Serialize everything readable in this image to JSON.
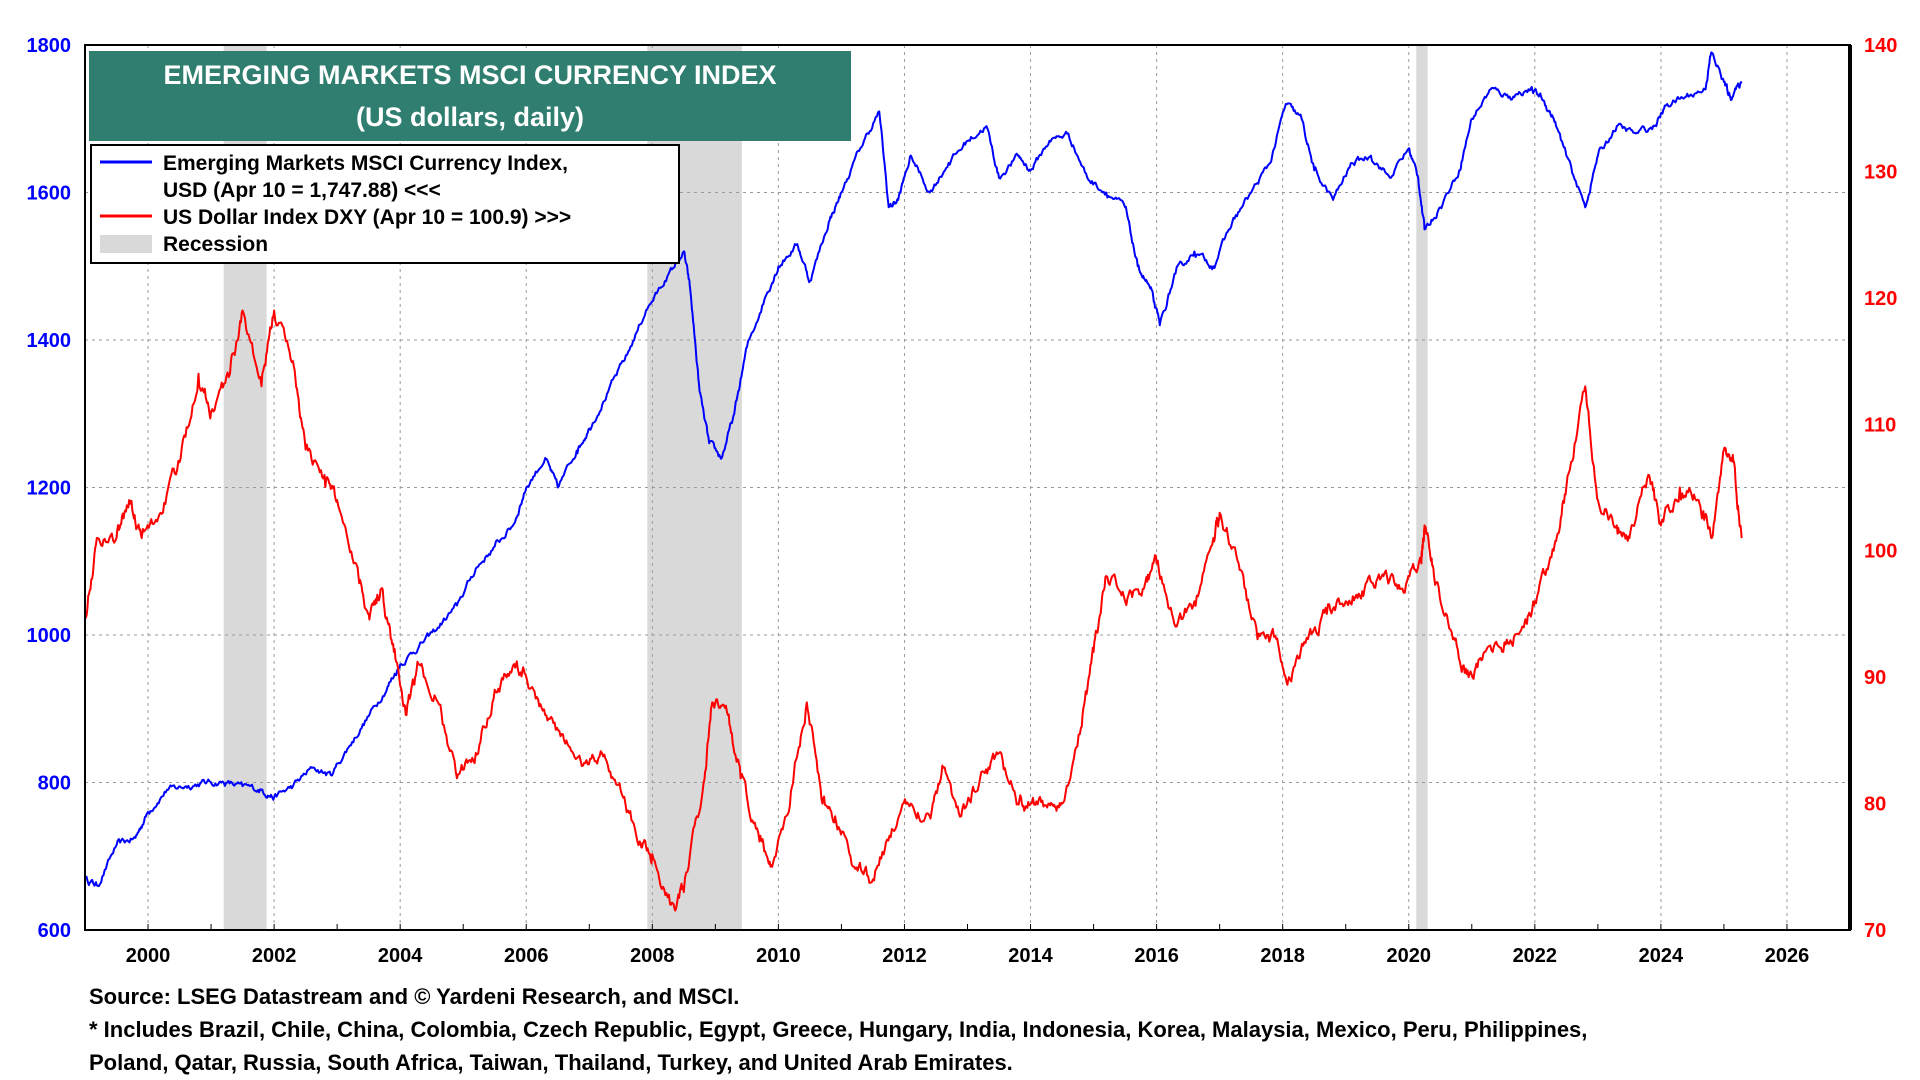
{
  "chart_data": {
    "type": "line",
    "title": "EMERGING MARKETS MSCI CURRENCY INDEX",
    "subtitle": "(US dollars, daily)",
    "x_range": [
      1999.0,
      2027.0
    ],
    "x_ticks": [
      2000,
      2002,
      2004,
      2006,
      2008,
      2010,
      2012,
      2014,
      2016,
      2018,
      2020,
      2022,
      2024,
      2026
    ],
    "left_axis": {
      "range": [
        600,
        1800
      ],
      "ticks": [
        600,
        800,
        1000,
        1200,
        1400,
        1600,
        1800
      ],
      "color": "#0000ff"
    },
    "right_axis": {
      "range": [
        70,
        140
      ],
      "ticks": [
        70,
        80,
        90,
        100,
        110,
        120,
        130,
        140
      ],
      "color": "#ff0000"
    },
    "grid": true,
    "legend_placement": "top-left",
    "legend": [
      {
        "label_line1": "Emerging Markets MSCI Currency Index,",
        "label_line2": "USD (Apr 10 = 1,747.88) <<<",
        "color": "#0000ff",
        "kind": "line"
      },
      {
        "label_line1": "US Dollar Index DXY (Apr 10 = 100.9) >>>",
        "color": "#ff0000",
        "kind": "line"
      },
      {
        "label_line1": "Recession",
        "color": "#d9d9d9",
        "kind": "box"
      }
    ],
    "recessions": [
      [
        2001.2,
        2001.88
      ],
      [
        2007.92,
        2009.42
      ],
      [
        2020.12,
        2020.3
      ]
    ],
    "series": [
      {
        "name": "Emerging Markets MSCI Currency Index, USD",
        "axis": "left",
        "color": "#0000ff",
        "points": [
          [
            1999.0,
            670
          ],
          [
            1999.2,
            660
          ],
          [
            1999.5,
            715
          ],
          [
            1999.8,
            725
          ],
          [
            2000.0,
            760
          ],
          [
            2000.3,
            790
          ],
          [
            2000.6,
            795
          ],
          [
            2000.9,
            800
          ],
          [
            2001.2,
            800
          ],
          [
            2001.5,
            795
          ],
          [
            2001.8,
            790
          ],
          [
            2002.0,
            780
          ],
          [
            2002.3,
            795
          ],
          [
            2002.6,
            820
          ],
          [
            2002.9,
            810
          ],
          [
            2003.2,
            850
          ],
          [
            2003.5,
            890
          ],
          [
            2003.8,
            930
          ],
          [
            2004.0,
            960
          ],
          [
            2004.3,
            985
          ],
          [
            2004.6,
            1010
          ],
          [
            2004.9,
            1040
          ],
          [
            2005.2,
            1090
          ],
          [
            2005.5,
            1120
          ],
          [
            2005.8,
            1150
          ],
          [
            2006.0,
            1200
          ],
          [
            2006.3,
            1240
          ],
          [
            2006.5,
            1200
          ],
          [
            2006.8,
            1250
          ],
          [
            2007.0,
            1280
          ],
          [
            2007.3,
            1330
          ],
          [
            2007.6,
            1380
          ],
          [
            2007.9,
            1440
          ],
          [
            2008.2,
            1480
          ],
          [
            2008.5,
            1520
          ],
          [
            2008.6,
            1470
          ],
          [
            2008.75,
            1330
          ],
          [
            2008.9,
            1260
          ],
          [
            2009.1,
            1240
          ],
          [
            2009.3,
            1300
          ],
          [
            2009.5,
            1390
          ],
          [
            2009.8,
            1460
          ],
          [
            2010.0,
            1500
          ],
          [
            2010.3,
            1530
          ],
          [
            2010.5,
            1480
          ],
          [
            2010.8,
            1560
          ],
          [
            2011.0,
            1600
          ],
          [
            2011.3,
            1660
          ],
          [
            2011.6,
            1710
          ],
          [
            2011.75,
            1580
          ],
          [
            2011.9,
            1590
          ],
          [
            2012.1,
            1650
          ],
          [
            2012.4,
            1600
          ],
          [
            2012.7,
            1640
          ],
          [
            2013.0,
            1670
          ],
          [
            2013.3,
            1690
          ],
          [
            2013.5,
            1620
          ],
          [
            2013.8,
            1650
          ],
          [
            2014.0,
            1630
          ],
          [
            2014.3,
            1670
          ],
          [
            2014.6,
            1680
          ],
          [
            2014.9,
            1620
          ],
          [
            2015.2,
            1600
          ],
          [
            2015.5,
            1580
          ],
          [
            2015.7,
            1500
          ],
          [
            2015.9,
            1470
          ],
          [
            2016.05,
            1420
          ],
          [
            2016.3,
            1490
          ],
          [
            2016.6,
            1520
          ],
          [
            2016.9,
            1500
          ],
          [
            2017.2,
            1560
          ],
          [
            2017.5,
            1600
          ],
          [
            2017.8,
            1640
          ],
          [
            2018.05,
            1720
          ],
          [
            2018.3,
            1700
          ],
          [
            2018.5,
            1630
          ],
          [
            2018.8,
            1590
          ],
          [
            2019.1,
            1640
          ],
          [
            2019.4,
            1650
          ],
          [
            2019.7,
            1620
          ],
          [
            2020.0,
            1660
          ],
          [
            2020.15,
            1620
          ],
          [
            2020.25,
            1550
          ],
          [
            2020.5,
            1580
          ],
          [
            2020.8,
            1630
          ],
          [
            2021.0,
            1700
          ],
          [
            2021.3,
            1740
          ],
          [
            2021.6,
            1730
          ],
          [
            2021.9,
            1740
          ],
          [
            2022.1,
            1730
          ],
          [
            2022.3,
            1700
          ],
          [
            2022.5,
            1650
          ],
          [
            2022.8,
            1580
          ],
          [
            2023.0,
            1650
          ],
          [
            2023.3,
            1690
          ],
          [
            2023.6,
            1680
          ],
          [
            2023.9,
            1690
          ],
          [
            2024.1,
            1720
          ],
          [
            2024.4,
            1730
          ],
          [
            2024.7,
            1740
          ],
          [
            2024.8,
            1790
          ],
          [
            2025.0,
            1750
          ],
          [
            2025.1,
            1730
          ],
          [
            2025.28,
            1748
          ]
        ]
      },
      {
        "name": "US Dollar Index DXY",
        "axis": "right",
        "color": "#ff0000",
        "points": [
          [
            1999.0,
            95
          ],
          [
            1999.2,
            101
          ],
          [
            1999.5,
            101
          ],
          [
            1999.7,
            104
          ],
          [
            1999.9,
            101
          ],
          [
            2000.2,
            103
          ],
          [
            2000.5,
            107
          ],
          [
            2000.8,
            114
          ],
          [
            2001.0,
            111
          ],
          [
            2001.3,
            114
          ],
          [
            2001.5,
            119
          ],
          [
            2001.8,
            113
          ],
          [
            2002.0,
            119
          ],
          [
            2002.3,
            115
          ],
          [
            2002.5,
            108
          ],
          [
            2002.8,
            106
          ],
          [
            2003.0,
            104
          ],
          [
            2003.3,
            99
          ],
          [
            2003.5,
            95
          ],
          [
            2003.7,
            97
          ],
          [
            2003.9,
            92
          ],
          [
            2004.1,
            87
          ],
          [
            2004.3,
            91
          ],
          [
            2004.6,
            88
          ],
          [
            2004.9,
            82
          ],
          [
            2005.2,
            84
          ],
          [
            2005.5,
            89
          ],
          [
            2005.8,
            91
          ],
          [
            2006.0,
            90
          ],
          [
            2006.3,
            87
          ],
          [
            2006.6,
            85
          ],
          [
            2006.9,
            83
          ],
          [
            2007.2,
            84
          ],
          [
            2007.5,
            81
          ],
          [
            2007.8,
            77
          ],
          [
            2008.0,
            76
          ],
          [
            2008.3,
            72
          ],
          [
            2008.5,
            73
          ],
          [
            2008.8,
            81
          ],
          [
            2008.95,
            88
          ],
          [
            2009.2,
            87
          ],
          [
            2009.4,
            82
          ],
          [
            2009.7,
            77
          ],
          [
            2009.9,
            75
          ],
          [
            2010.2,
            81
          ],
          [
            2010.45,
            88
          ],
          [
            2010.7,
            80
          ],
          [
            2010.9,
            79
          ],
          [
            2011.2,
            75
          ],
          [
            2011.5,
            74
          ],
          [
            2011.8,
            78
          ],
          [
            2012.1,
            80
          ],
          [
            2012.4,
            79
          ],
          [
            2012.6,
            83
          ],
          [
            2012.9,
            79
          ],
          [
            2013.2,
            82
          ],
          [
            2013.5,
            84
          ],
          [
            2013.8,
            80
          ],
          [
            2014.0,
            80
          ],
          [
            2014.3,
            80
          ],
          [
            2014.5,
            80
          ],
          [
            2014.8,
            86
          ],
          [
            2015.0,
            92
          ],
          [
            2015.2,
            98
          ],
          [
            2015.5,
            96
          ],
          [
            2015.8,
            97
          ],
          [
            2016.0,
            99
          ],
          [
            2016.3,
            94
          ],
          [
            2016.6,
            96
          ],
          [
            2016.9,
            101
          ],
          [
            2017.0,
            103
          ],
          [
            2017.3,
            99
          ],
          [
            2017.6,
            93
          ],
          [
            2017.9,
            93
          ],
          [
            2018.1,
            90
          ],
          [
            2018.4,
            93
          ],
          [
            2018.7,
            95
          ],
          [
            2019.0,
            96
          ],
          [
            2019.3,
            97
          ],
          [
            2019.6,
            98
          ],
          [
            2019.9,
            97
          ],
          [
            2020.2,
            99
          ],
          [
            2020.25,
            102
          ],
          [
            2020.4,
            98
          ],
          [
            2020.7,
            93
          ],
          [
            2020.95,
            90
          ],
          [
            2021.2,
            92
          ],
          [
            2021.5,
            92
          ],
          [
            2021.8,
            94
          ],
          [
            2022.0,
            96
          ],
          [
            2022.3,
            100
          ],
          [
            2022.5,
            105
          ],
          [
            2022.8,
            113
          ],
          [
            2023.0,
            104
          ],
          [
            2023.3,
            102
          ],
          [
            2023.5,
            101
          ],
          [
            2023.8,
            106
          ],
          [
            2024.0,
            102
          ],
          [
            2024.3,
            105
          ],
          [
            2024.6,
            104
          ],
          [
            2024.8,
            101
          ],
          [
            2025.0,
            108
          ],
          [
            2025.15,
            107
          ],
          [
            2025.28,
            101
          ]
        ]
      }
    ]
  },
  "footer": {
    "source": "Source: LSEG Datastream and © Yardeni Research, and MSCI.",
    "note_line1": "* Includes Brazil, Chile, China, Colombia, Czech Republic, Egypt, Greece, Hungary, India, Indonesia, Korea, Malaysia, Mexico, Peru, Philippines,",
    "note_line2": "Poland, Qatar, Russia, South Africa, Taiwan, Thailand, Turkey, and United Arab Emirates."
  }
}
